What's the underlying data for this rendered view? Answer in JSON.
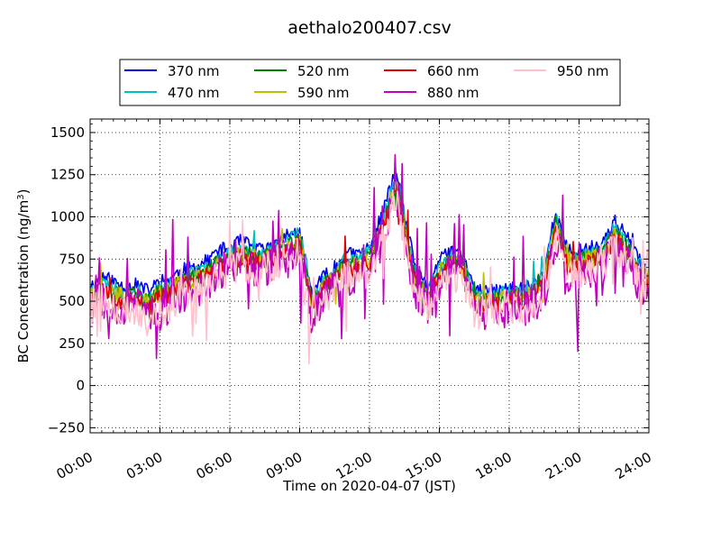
{
  "chart_data": {
    "type": "line",
    "title": "aethalo200407.csv",
    "xlabel": "Time on 2020-04-07 (JST)",
    "ylabel_main": "BC Concentration (ng/m",
    "ylabel_sup": "3",
    "ylabel_end": ")",
    "x_range_hours": [
      0,
      24
    ],
    "ylim": [
      -280,
      1580
    ],
    "x_ticks": [
      {
        "hour": 0,
        "label": "00:00"
      },
      {
        "hour": 3,
        "label": "03:00"
      },
      {
        "hour": 6,
        "label": "06:00"
      },
      {
        "hour": 9,
        "label": "09:00"
      },
      {
        "hour": 12,
        "label": "12:00"
      },
      {
        "hour": 15,
        "label": "15:00"
      },
      {
        "hour": 18,
        "label": "18:00"
      },
      {
        "hour": 21,
        "label": "21:00"
      },
      {
        "hour": 24,
        "label": "24:00"
      }
    ],
    "y_ticks": [
      {
        "value": -250,
        "label": "−250"
      },
      {
        "value": 0,
        "label": "0"
      },
      {
        "value": 250,
        "label": "250"
      },
      {
        "value": 500,
        "label": "500"
      },
      {
        "value": 750,
        "label": "750"
      },
      {
        "value": 1000,
        "label": "1000"
      },
      {
        "value": 1250,
        "label": "1250"
      },
      {
        "value": 1500,
        "label": "1500"
      }
    ],
    "grid": true,
    "legend_position": "top, above plot, 4 columns",
    "series": [
      {
        "name": "370 nm",
        "color": "#0000ee",
        "base_offset": 80,
        "noise": 0.45,
        "spike": 0.2,
        "seed": 11,
        "x": [
          0,
          0.5,
          1,
          1.5,
          2,
          2.5,
          3,
          3.5,
          4,
          4.5,
          5,
          5.5,
          6,
          6.5,
          7,
          7.5,
          8,
          8.5,
          9,
          9.25,
          9.5,
          10,
          10.5,
          11,
          11.5,
          12,
          12.5,
          13,
          13.25,
          13.5,
          14,
          14.5,
          15,
          15.5,
          16,
          16.5,
          17,
          17.5,
          18,
          18.5,
          19,
          19.5,
          20,
          20.5,
          21,
          21.5,
          22,
          22.5,
          23,
          23.5,
          24
        ],
        "y": [
          590,
          650,
          620,
          580,
          600,
          560,
          620,
          640,
          690,
          700,
          740,
          800,
          820,
          860,
          820,
          800,
          850,
          900,
          900,
          700,
          560,
          640,
          700,
          780,
          780,
          820,
          1000,
          1220,
          1230,
          1000,
          680,
          580,
          740,
          800,
          780,
          560,
          560,
          560,
          580,
          580,
          600,
          680,
          1040,
          800,
          800,
          820,
          840,
          980,
          900,
          760,
          680
        ]
      },
      {
        "name": "470 nm",
        "color": "#00bfbf",
        "base_offset": 40,
        "noise": 0.5,
        "spike": 0.22,
        "seed": 23,
        "x": [
          0,
          0.5,
          1,
          1.5,
          2,
          2.5,
          3,
          3.5,
          4,
          4.5,
          5,
          5.5,
          6,
          6.5,
          7,
          7.5,
          8,
          8.5,
          9,
          9.25,
          9.5,
          10,
          10.5,
          11,
          11.5,
          12,
          12.5,
          13,
          13.25,
          13.5,
          14,
          14.5,
          15,
          15.5,
          16,
          16.5,
          17,
          17.5,
          18,
          18.5,
          19,
          19.5,
          20,
          20.5,
          21,
          21.5,
          22,
          22.5,
          23,
          23.5,
          24
        ],
        "y": [
          560,
          610,
          580,
          540,
          560,
          520,
          580,
          600,
          650,
          660,
          700,
          760,
          780,
          820,
          800,
          780,
          820,
          870,
          900,
          760,
          520,
          610,
          670,
          750,
          750,
          790,
          960,
          1180,
          1190,
          960,
          650,
          550,
          710,
          760,
          740,
          530,
          530,
          530,
          550,
          550,
          570,
          650,
          1000,
          760,
          760,
          790,
          800,
          930,
          860,
          730,
          650
        ]
      },
      {
        "name": "520 nm",
        "color": "#008000",
        "base_offset": 0,
        "noise": 0.55,
        "spike": 0.25,
        "seed": 37,
        "x": [
          0,
          0.5,
          1,
          1.5,
          2,
          2.5,
          3,
          3.5,
          4,
          4.5,
          5,
          5.5,
          6,
          6.5,
          7,
          7.5,
          8,
          8.5,
          9,
          9.25,
          9.5,
          10,
          10.5,
          11,
          11.5,
          12,
          12.5,
          13,
          13.25,
          13.5,
          14,
          14.5,
          15,
          15.5,
          16,
          16.5,
          17,
          17.5,
          18,
          18.5,
          19,
          19.5,
          20,
          20.5,
          21,
          21.5,
          22,
          22.5,
          23,
          23.5,
          24
        ],
        "y": [
          540,
          590,
          560,
          520,
          540,
          500,
          560,
          580,
          620,
          640,
          680,
          730,
          760,
          790,
          770,
          760,
          800,
          840,
          860,
          700,
          500,
          590,
          650,
          720,
          720,
          760,
          930,
          1150,
          1160,
          930,
          620,
          530,
          680,
          740,
          720,
          510,
          510,
          510,
          530,
          530,
          550,
          620,
          970,
          740,
          740,
          760,
          780,
          900,
          830,
          700,
          630
        ]
      },
      {
        "name": "590 nm",
        "color": "#bfbf00",
        "base_offset": -10,
        "noise": 0.6,
        "spike": 0.27,
        "seed": 41,
        "x": [
          0,
          0.5,
          1,
          1.5,
          2,
          2.5,
          3,
          3.5,
          4,
          4.5,
          5,
          5.5,
          6,
          6.5,
          7,
          7.5,
          8,
          8.5,
          9,
          9.25,
          9.5,
          10,
          10.5,
          11,
          11.5,
          12,
          12.5,
          13,
          13.25,
          13.5,
          14,
          14.5,
          15,
          15.5,
          16,
          16.5,
          17,
          17.5,
          18,
          18.5,
          19,
          19.5,
          20,
          20.5,
          21,
          21.5,
          22,
          22.5,
          23,
          23.5,
          24
        ],
        "y": [
          530,
          580,
          550,
          510,
          530,
          490,
          550,
          570,
          610,
          630,
          670,
          720,
          750,
          780,
          760,
          750,
          790,
          830,
          860,
          700,
          490,
          580,
          640,
          710,
          710,
          750,
          920,
          1140,
          1150,
          920,
          610,
          520,
          670,
          730,
          710,
          500,
          500,
          500,
          520,
          520,
          540,
          610,
          960,
          730,
          730,
          750,
          770,
          890,
          820,
          690,
          620
        ]
      },
      {
        "name": "660 nm",
        "color": "#e00000",
        "base_offset": -20,
        "noise": 0.62,
        "spike": 0.3,
        "seed": 53,
        "x": [
          0,
          0.5,
          1,
          1.5,
          2,
          2.5,
          3,
          3.5,
          4,
          4.5,
          5,
          5.5,
          6,
          6.5,
          7,
          7.5,
          8,
          8.5,
          9,
          9.25,
          9.5,
          10,
          10.5,
          11,
          11.5,
          12,
          12.5,
          13,
          13.25,
          13.5,
          14,
          14.5,
          15,
          15.5,
          16,
          16.5,
          17,
          17.5,
          18,
          18.5,
          19,
          19.5,
          20,
          20.5,
          21,
          21.5,
          22,
          22.5,
          23,
          23.5,
          24
        ],
        "y": [
          510,
          560,
          530,
          490,
          510,
          470,
          530,
          550,
          590,
          610,
          650,
          700,
          730,
          760,
          740,
          730,
          770,
          810,
          840,
          680,
          470,
          560,
          620,
          690,
          690,
          730,
          900,
          1120,
          1130,
          900,
          590,
          500,
          650,
          710,
          690,
          480,
          480,
          480,
          500,
          500,
          520,
          590,
          940,
          710,
          710,
          730,
          750,
          870,
          800,
          670,
          600
        ]
      },
      {
        "name": "880 nm",
        "color": "#bf00bf",
        "base_offset": -60,
        "noise": 1.3,
        "spike": 0.8,
        "seed": 67,
        "x": [
          0,
          0.5,
          1,
          1.5,
          2,
          2.5,
          3,
          3.5,
          4,
          4.5,
          5,
          5.5,
          6,
          6.5,
          7,
          7.5,
          8,
          8.5,
          9,
          9.25,
          9.5,
          10,
          10.5,
          11,
          11.5,
          12,
          12.5,
          13,
          13.25,
          13.5,
          14,
          14.5,
          15,
          15.5,
          16,
          16.5,
          17,
          17.5,
          18,
          18.5,
          19,
          19.5,
          20,
          20.5,
          21,
          21.5,
          22,
          22.5,
          23,
          23.5,
          24
        ],
        "y": [
          470,
          520,
          490,
          450,
          470,
          430,
          420,
          500,
          550,
          570,
          610,
          660,
          690,
          720,
          700,
          700,
          740,
          780,
          800,
          640,
          420,
          520,
          580,
          650,
          650,
          690,
          860,
          1080,
          1090,
          860,
          550,
          460,
          610,
          670,
          650,
          440,
          440,
          440,
          460,
          460,
          480,
          550,
          900,
          670,
          670,
          690,
          710,
          830,
          760,
          630,
          560
        ]
      },
      {
        "name": "950 nm",
        "color": "#ffc0cb",
        "base_offset": -60,
        "noise": 1.1,
        "spike": 0.7,
        "seed": 79,
        "x": [
          0,
          0.5,
          1,
          1.5,
          2,
          2.5,
          3,
          3.5,
          4,
          4.5,
          5,
          5.5,
          6,
          6.5,
          7,
          7.5,
          8,
          8.5,
          9,
          9.25,
          9.5,
          10,
          10.5,
          11,
          11.5,
          12,
          12.5,
          13,
          13.25,
          13.5,
          14,
          14.5,
          15,
          15.5,
          16,
          16.5,
          17,
          17.5,
          18,
          18.5,
          19,
          19.5,
          20,
          20.5,
          21,
          21.5,
          22,
          22.5,
          23,
          23.5,
          24
        ],
        "y": [
          460,
          510,
          480,
          440,
          450,
          380,
          400,
          490,
          540,
          560,
          600,
          650,
          680,
          710,
          690,
          690,
          730,
          770,
          790,
          500,
          400,
          510,
          570,
          640,
          640,
          680,
          850,
          1070,
          1080,
          850,
          540,
          450,
          600,
          660,
          640,
          430,
          430,
          430,
          450,
          450,
          470,
          540,
          890,
          660,
          660,
          680,
          700,
          820,
          750,
          620,
          550
        ]
      }
    ]
  }
}
